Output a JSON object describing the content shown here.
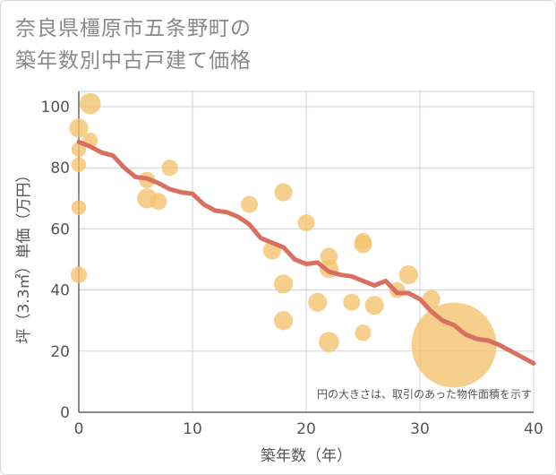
{
  "title_lines": [
    "奈良県橿原市五条野町の",
    "築年数別中古戸建て価格"
  ],
  "chart_data": {
    "type": "scatter",
    "xlabel": "築年数（年）",
    "ylabel": "坪（3.3㎡）単価（万円）",
    "xlim": [
      0,
      40
    ],
    "ylim": [
      0,
      105
    ],
    "xticks": [
      0,
      10,
      20,
      30,
      40
    ],
    "yticks": [
      0,
      20,
      40,
      60,
      80,
      100
    ],
    "grid": true,
    "annotation": "円の大きさは、取引のあった物件面積を示す",
    "colors": {
      "points": "#f5c16c",
      "trend": "#d9705f",
      "grid": "#c9d3e3"
    },
    "points": [
      {
        "x": 0,
        "y": 93,
        "size": 2
      },
      {
        "x": 0,
        "y": 86,
        "size": 1.2
      },
      {
        "x": 0,
        "y": 81,
        "size": 1.2
      },
      {
        "x": 0,
        "y": 67,
        "size": 1.2
      },
      {
        "x": 0,
        "y": 45,
        "size": 1.5
      },
      {
        "x": 1,
        "y": 101,
        "size": 2.5
      },
      {
        "x": 1,
        "y": 89,
        "size": 1.3
      },
      {
        "x": 6,
        "y": 76,
        "size": 1.5
      },
      {
        "x": 6,
        "y": 70,
        "size": 2.2
      },
      {
        "x": 7,
        "y": 69,
        "size": 1.6
      },
      {
        "x": 8,
        "y": 80,
        "size": 1.5
      },
      {
        "x": 15,
        "y": 68,
        "size": 1.6
      },
      {
        "x": 17,
        "y": 53,
        "size": 1.8
      },
      {
        "x": 18,
        "y": 72,
        "size": 1.8
      },
      {
        "x": 18,
        "y": 42,
        "size": 2
      },
      {
        "x": 18,
        "y": 30,
        "size": 2
      },
      {
        "x": 20,
        "y": 62,
        "size": 1.6
      },
      {
        "x": 21,
        "y": 36,
        "size": 2
      },
      {
        "x": 22,
        "y": 51,
        "size": 1.7
      },
      {
        "x": 22,
        "y": 47,
        "size": 2
      },
      {
        "x": 22,
        "y": 23,
        "size": 2.3
      },
      {
        "x": 24,
        "y": 36,
        "size": 1.6
      },
      {
        "x": 25,
        "y": 56,
        "size": 1.5
      },
      {
        "x": 25,
        "y": 55,
        "size": 1.8
      },
      {
        "x": 25,
        "y": 26,
        "size": 1.5
      },
      {
        "x": 26,
        "y": 35,
        "size": 2
      },
      {
        "x": 28,
        "y": 40,
        "size": 1.4
      },
      {
        "x": 29,
        "y": 45,
        "size": 2
      },
      {
        "x": 31,
        "y": 37,
        "size": 1.8
      },
      {
        "x": 33,
        "y": 22,
        "size": 40
      }
    ],
    "trend": {
      "x": [
        0,
        1,
        2,
        3,
        4,
        5,
        6,
        7,
        8,
        9,
        10,
        11,
        12,
        13,
        14,
        15,
        16,
        17,
        18,
        19,
        20,
        21,
        22,
        23,
        24,
        25,
        26,
        27,
        28,
        29,
        30,
        31,
        32,
        33,
        34,
        35,
        36,
        37,
        38,
        39,
        40
      ],
      "y": [
        88.5,
        87,
        85,
        84,
        80,
        77,
        76.5,
        75,
        73,
        72,
        71.5,
        68,
        66,
        65.5,
        64,
        61.5,
        57,
        55.5,
        54,
        50,
        48.5,
        49,
        46,
        45,
        44.5,
        43,
        41.5,
        43,
        39,
        39,
        37,
        33,
        30,
        28.5,
        25.5,
        24,
        23.5,
        22,
        20,
        18,
        16
      ]
    }
  }
}
